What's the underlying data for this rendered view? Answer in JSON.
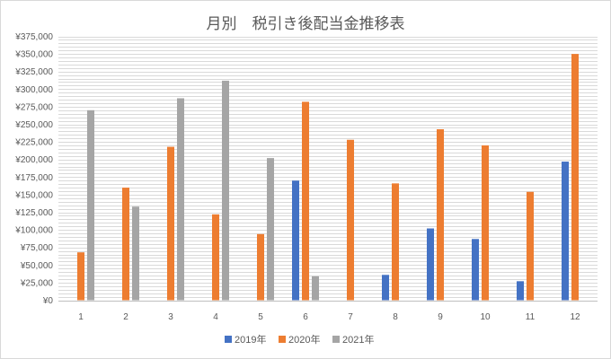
{
  "chart_data": {
    "type": "bar",
    "title": "月別　税引き後配当金推移表",
    "xlabel": "",
    "ylabel": "",
    "categories": [
      "1",
      "2",
      "3",
      "4",
      "5",
      "6",
      "7",
      "8",
      "9",
      "10",
      "11",
      "12"
    ],
    "series": [
      {
        "name": "2019年",
        "color": "#4472c4",
        "values": [
          0,
          0,
          0,
          0,
          0,
          170000,
          0,
          36000,
          102000,
          87000,
          27000,
          197000
        ]
      },
      {
        "name": "2020年",
        "color": "#ed7d31",
        "values": [
          68000,
          160000,
          218000,
          122000,
          94000,
          282000,
          228000,
          166000,
          243000,
          220000,
          154000,
          350000
        ]
      },
      {
        "name": "2021年",
        "color": "#a5a5a5",
        "values": [
          270000,
          133000,
          287000,
          312000,
          202000,
          34000,
          0,
          0,
          0,
          0,
          0,
          0
        ]
      }
    ],
    "ylim": [
      0,
      375000
    ],
    "yticks": [
      "¥0",
      "¥25,000",
      "¥50,000",
      "¥75,000",
      "¥100,000",
      "¥125,000",
      "¥150,000",
      "¥175,000",
      "¥200,000",
      "¥225,000",
      "¥250,000",
      "¥275,000",
      "¥300,000",
      "¥325,000",
      "¥350,000",
      "¥375,000"
    ],
    "ytick_step": 25000,
    "minor_grid_step": 5000,
    "grid": true,
    "legend_position": "bottom"
  }
}
